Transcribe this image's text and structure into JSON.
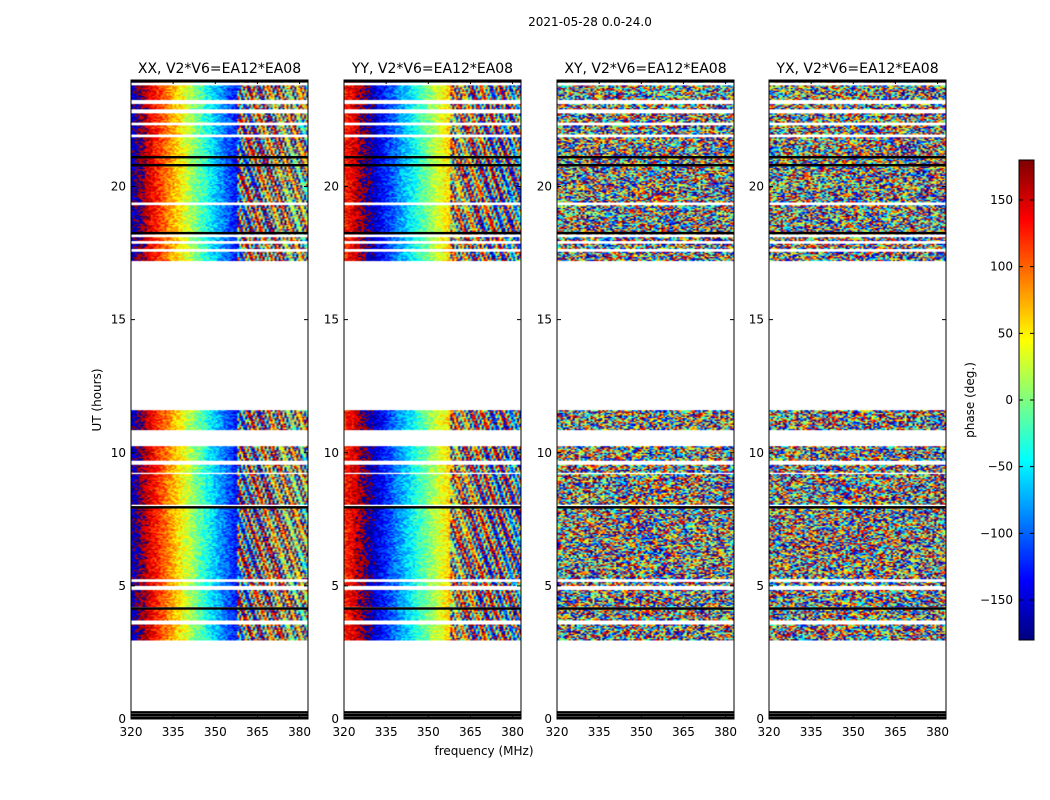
{
  "figure": {
    "suptitle": "2021-05-28 0.0-24.0"
  },
  "chart_data": {
    "type": "heatmap",
    "xlabel": "frequency (MHz)",
    "ylabel": "UT (hours)",
    "xlim": [
      320,
      383
    ],
    "ylim": [
      0,
      24
    ],
    "x_ticks": [
      320,
      335,
      350,
      365,
      380
    ],
    "y_ticks": [
      0,
      5,
      10,
      15,
      20
    ],
    "colorbar": {
      "label": "phase (deg.)",
      "range": [
        -180,
        180
      ],
      "ticks": [
        -150,
        -100,
        -50,
        0,
        50,
        100,
        150
      ],
      "tick_labels": [
        "−150",
        "−100",
        "−50",
        "0",
        "50",
        "100",
        "150"
      ],
      "colormap": "jet",
      "colors": [
        "#00007f",
        "#0000ff",
        "#007fff",
        "#00ffff",
        "#7fff7f",
        "#ffff00",
        "#ff7f00",
        "#ff0000",
        "#7f0000"
      ]
    },
    "panels": [
      {
        "title": "XX, V2*V6=EA12*EA08",
        "pol": "XX",
        "phase_center_mhz": 343,
        "phase_slope_deg_per_mhz": -9
      },
      {
        "title": "YY, V2*V6=EA12*EA08",
        "pol": "YY",
        "phase_center_mhz": 350,
        "phase_slope_deg_per_mhz": 8
      },
      {
        "title": "XY, V2*V6=EA12*EA08",
        "pol": "XY",
        "phase_center_mhz": null,
        "phase_slope_deg_per_mhz": null
      },
      {
        "title": "YX, V2*V6=EA12*EA08",
        "pol": "YX",
        "phase_center_mhz": null,
        "phase_slope_deg_per_mhz": null
      }
    ],
    "data_intervals_hours": [
      [
        2.95,
        4.15
      ],
      [
        4.2,
        9.2
      ],
      [
        9.25,
        10.25
      ],
      [
        10.85,
        11.6
      ],
      [
        17.2,
        24.0
      ]
    ],
    "flagged_bands_hours": [
      [
        3.55,
        3.72
      ],
      [
        4.85,
        5.0
      ],
      [
        5.15,
        5.25
      ],
      [
        7.95,
        8.05
      ],
      [
        9.55,
        9.7
      ],
      [
        17.55,
        17.65
      ],
      [
        17.85,
        17.95
      ],
      [
        18.1,
        18.2
      ],
      [
        19.3,
        19.4
      ],
      [
        21.85,
        21.95
      ],
      [
        22.3,
        22.42
      ],
      [
        22.75,
        22.9
      ],
      [
        23.1,
        23.25
      ],
      [
        23.8,
        23.9
      ]
    ],
    "dark_lines_hours": [
      0.05,
      0.15,
      0.25,
      4.15,
      7.95,
      18.25,
      20.8,
      21.1,
      23.95
    ],
    "grid": false,
    "colorbar_position": "right"
  }
}
